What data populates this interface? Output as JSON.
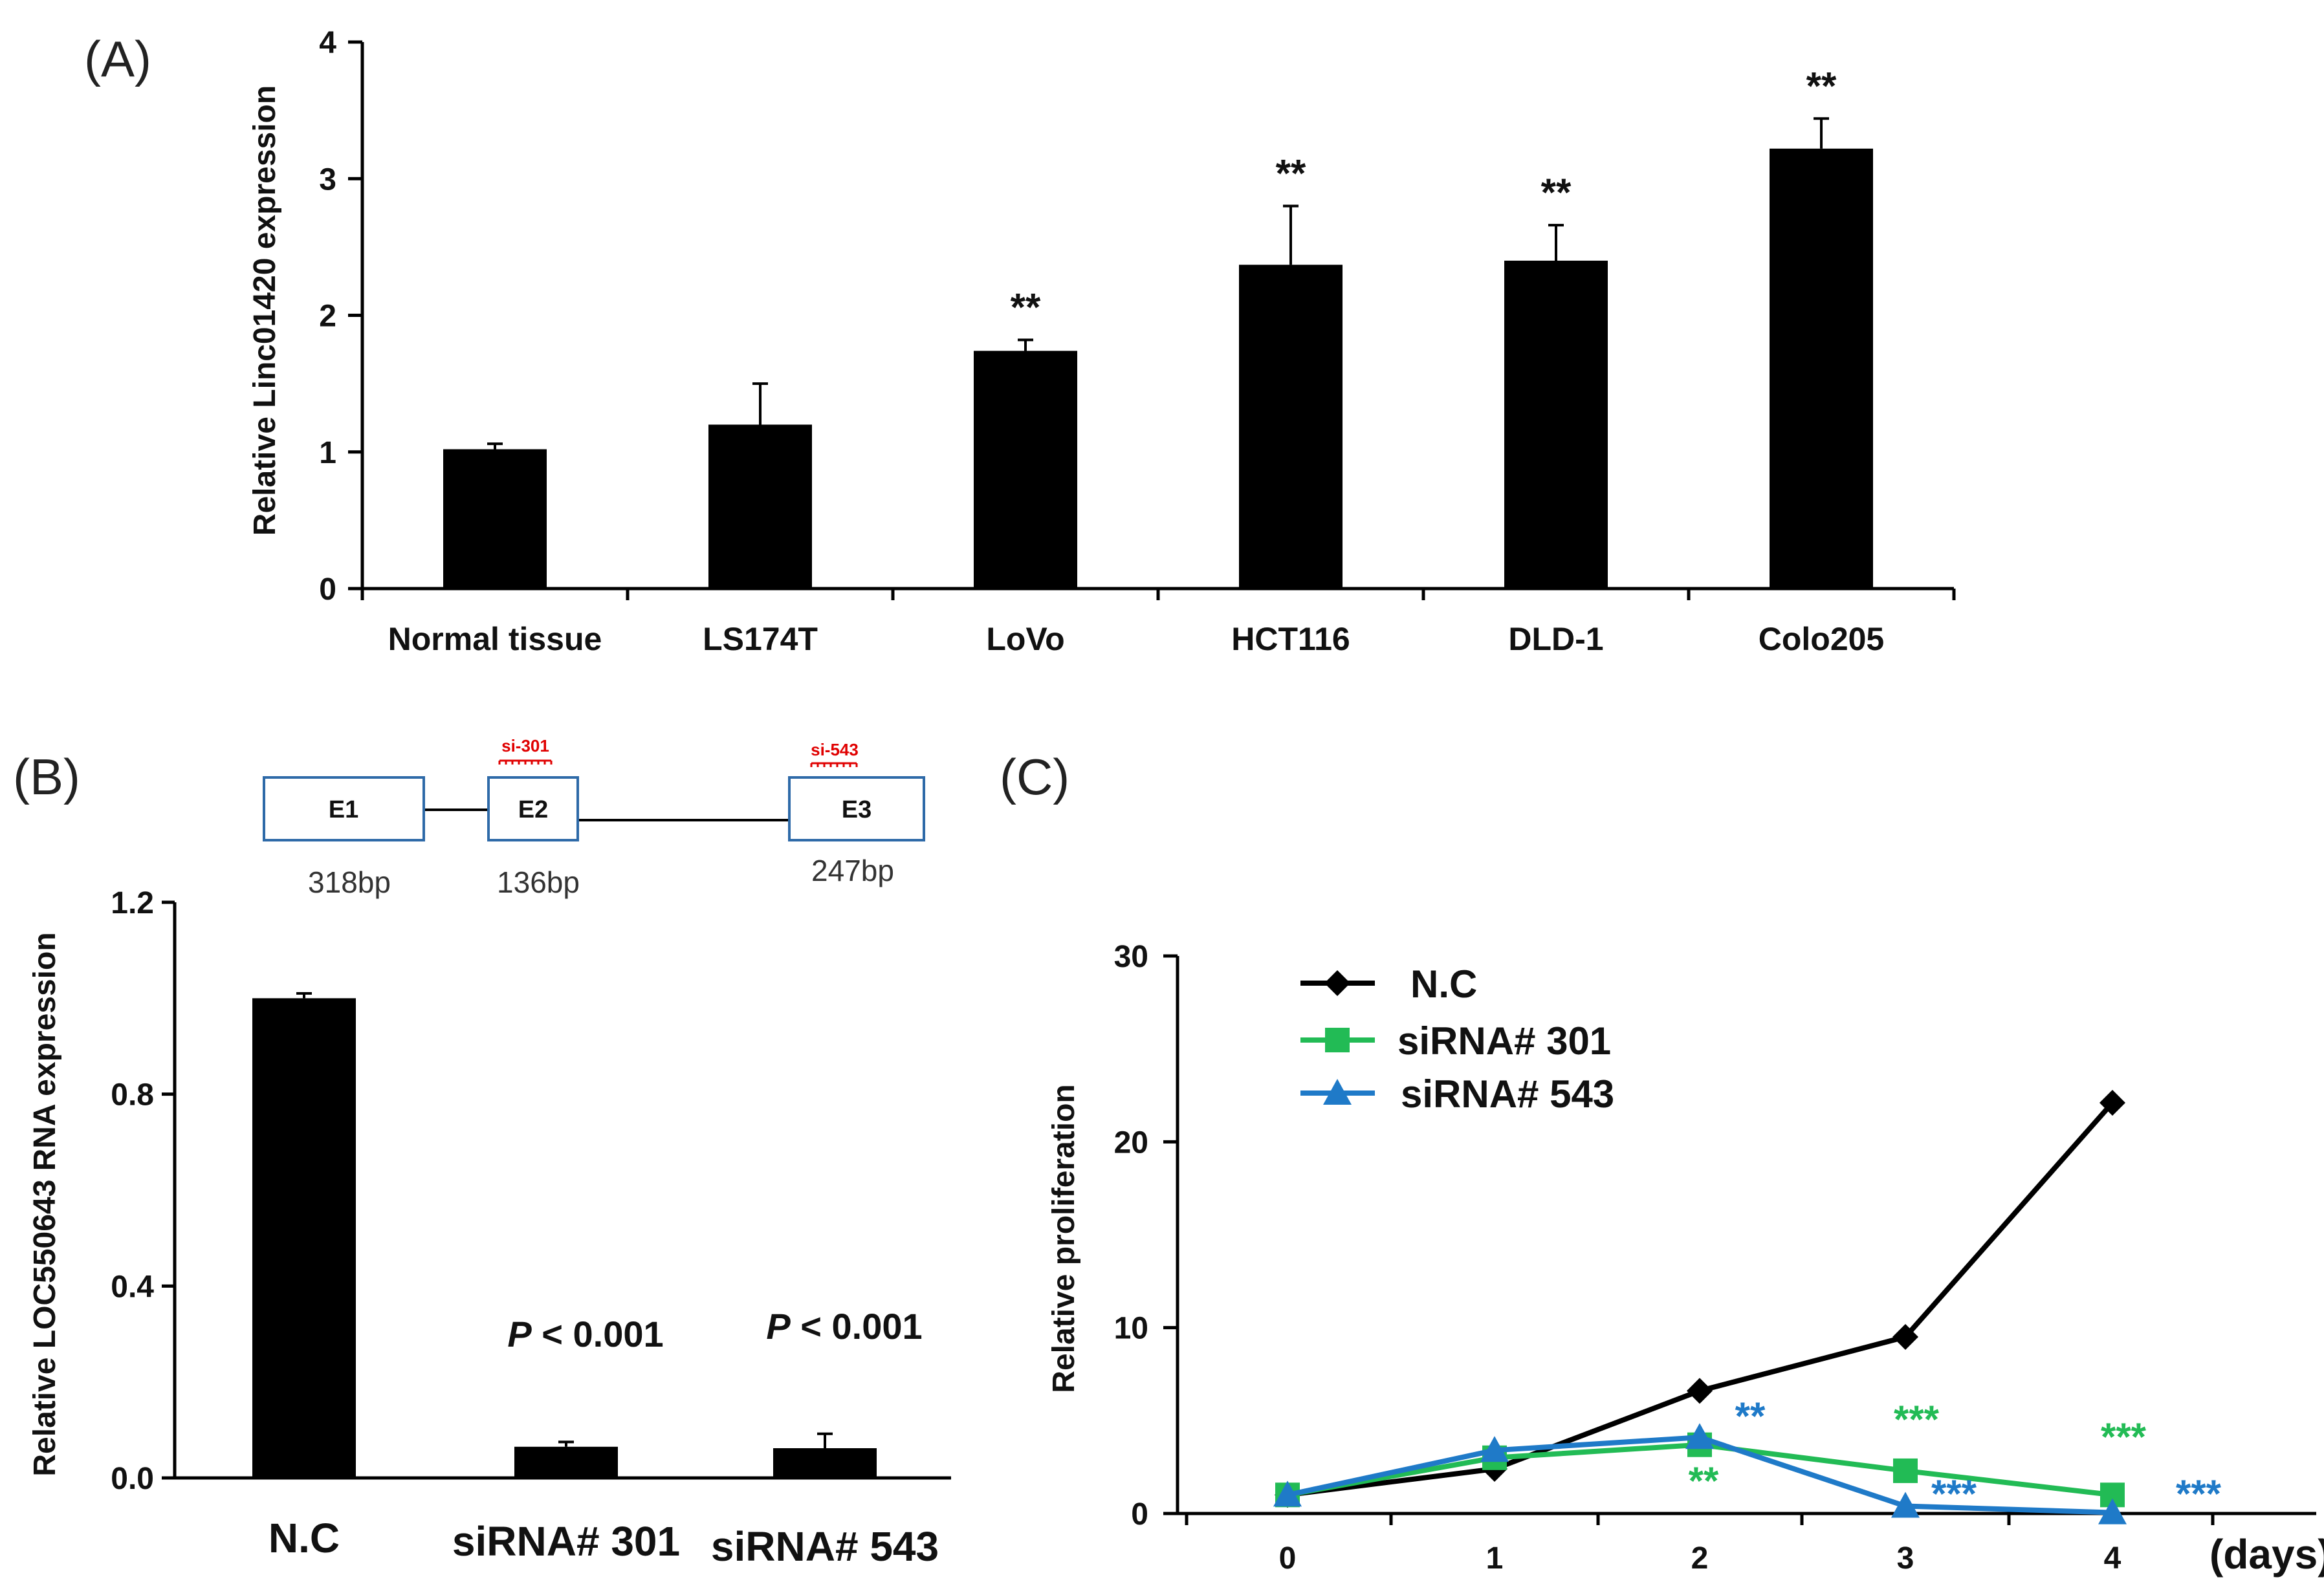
{
  "panels": {
    "A": {
      "label": "(A)"
    },
    "B": {
      "label": "(B)"
    },
    "C": {
      "label": "(C)"
    }
  },
  "gene_diagram": {
    "exons": [
      {
        "name": "E1",
        "length": "318bp"
      },
      {
        "name": "E2",
        "length": "136bp"
      },
      {
        "name": "E3",
        "length": "247bp"
      }
    ],
    "sirna_sites": [
      {
        "label": "si-301",
        "exon": "E2"
      },
      {
        "label": "si-543",
        "exon": "E3"
      }
    ],
    "colors": {
      "exon_border": "#2e6aa8",
      "sirna": "#e00000"
    }
  },
  "chart_data": [
    {
      "panel": "A",
      "type": "bar",
      "categories": [
        "Normal tissue",
        "LS174T",
        "LoVo",
        "HCT116",
        "DLD-1",
        "Colo205"
      ],
      "values": [
        1.02,
        1.2,
        1.74,
        2.37,
        2.4,
        3.22
      ],
      "errors": [
        0.04,
        0.3,
        0.08,
        0.43,
        0.26,
        0.22
      ],
      "significance": [
        "",
        "",
        "**",
        "**",
        "**",
        "**"
      ],
      "ylabel": "Relative Linc01420 expression",
      "ylim": [
        0,
        4
      ],
      "yticks": [
        "0",
        "1",
        "2",
        "3",
        "4"
      ],
      "bar_color": "#000000"
    },
    {
      "panel": "B",
      "type": "bar",
      "categories": [
        "N.C",
        "siRNA# 301",
        "siRNA# 543"
      ],
      "values": [
        1.0,
        0.065,
        0.062
      ],
      "errors": [
        0.01,
        0.01,
        0.03
      ],
      "annotations": [
        "",
        "P < 0.001",
        "P < 0.001"
      ],
      "ylabel": "Relative LOC550643 RNA expression",
      "ylim": [
        0,
        1.2
      ],
      "yticks": [
        "0.0",
        "0.4",
        "0.8",
        "1.2"
      ],
      "bar_color": "#000000"
    },
    {
      "panel": "C",
      "type": "line",
      "x": [
        0,
        1,
        2,
        3,
        4
      ],
      "xticks": [
        "0",
        "1",
        "2",
        "3",
        "4"
      ],
      "xlabel": "(days)",
      "ylabel": "Relative proliferation",
      "ylim": [
        0,
        30
      ],
      "yticks": [
        "0",
        "10",
        "20",
        "30"
      ],
      "series": [
        {
          "name": "N.C",
          "values": [
            1.0,
            2.4,
            6.6,
            9.5,
            22.1
          ],
          "color": "#000000",
          "marker": "diamond",
          "significance": [
            "",
            "",
            "",
            "",
            ""
          ]
        },
        {
          "name": "siRNA# 301",
          "values": [
            1.0,
            3.0,
            3.7,
            2.3,
            1.0
          ],
          "color": "#22bb55",
          "marker": "square",
          "significance": [
            "",
            "",
            "**",
            "***",
            "***"
          ]
        },
        {
          "name": "siRNA# 543",
          "values": [
            1.0,
            3.4,
            4.1,
            0.4,
            0.05
          ],
          "color": "#1f7ac8",
          "marker": "triangle",
          "significance": [
            "",
            "",
            "**",
            "***",
            "***"
          ]
        }
      ],
      "legend": "top-left"
    }
  ]
}
